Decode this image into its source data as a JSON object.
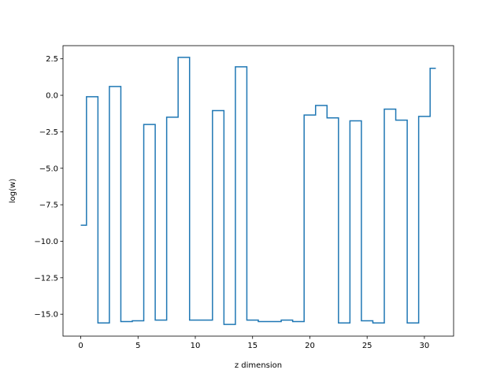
{
  "chart_data": {
    "type": "line",
    "drawstyle": "steps-mid",
    "title": "",
    "xlabel": "z dimension",
    "ylabel": "log(w)",
    "xlim": [
      -1.55,
      32.55
    ],
    "ylim": [
      -16.5,
      3.4
    ],
    "xticks": [
      0,
      5,
      10,
      15,
      20,
      25,
      30
    ],
    "yticks": [
      2.5,
      0.0,
      -2.5,
      -5.0,
      -7.5,
      -10.0,
      -12.5,
      -15.0
    ],
    "ytick_labels": [
      "2.5",
      "0.0",
      "−2.5",
      "−5.0",
      "−7.5",
      "−10.0",
      "−12.5",
      "−15.0"
    ],
    "grid": false,
    "series_color": "#1f77b4",
    "series": [
      {
        "x": [
          0,
          1,
          2,
          3,
          4,
          5,
          6,
          7,
          8,
          9,
          10,
          11,
          12,
          13,
          14,
          15,
          16,
          17,
          18,
          19,
          20,
          21,
          22,
          23,
          24,
          25,
          26,
          27,
          28,
          29,
          30,
          31
        ],
        "values": [
          -8.9,
          -0.1,
          -15.6,
          0.6,
          -15.5,
          -15.45,
          -2.0,
          -15.4,
          -1.5,
          2.6,
          -15.4,
          -15.4,
          -1.05,
          -15.7,
          1.95,
          -15.4,
          -15.5,
          -15.5,
          -15.4,
          -15.5,
          -1.35,
          -0.7,
          -1.55,
          -15.6,
          -1.75,
          -15.45,
          -15.6,
          -0.95,
          -1.7,
          -15.6,
          -1.45,
          1.85
        ]
      }
    ]
  }
}
